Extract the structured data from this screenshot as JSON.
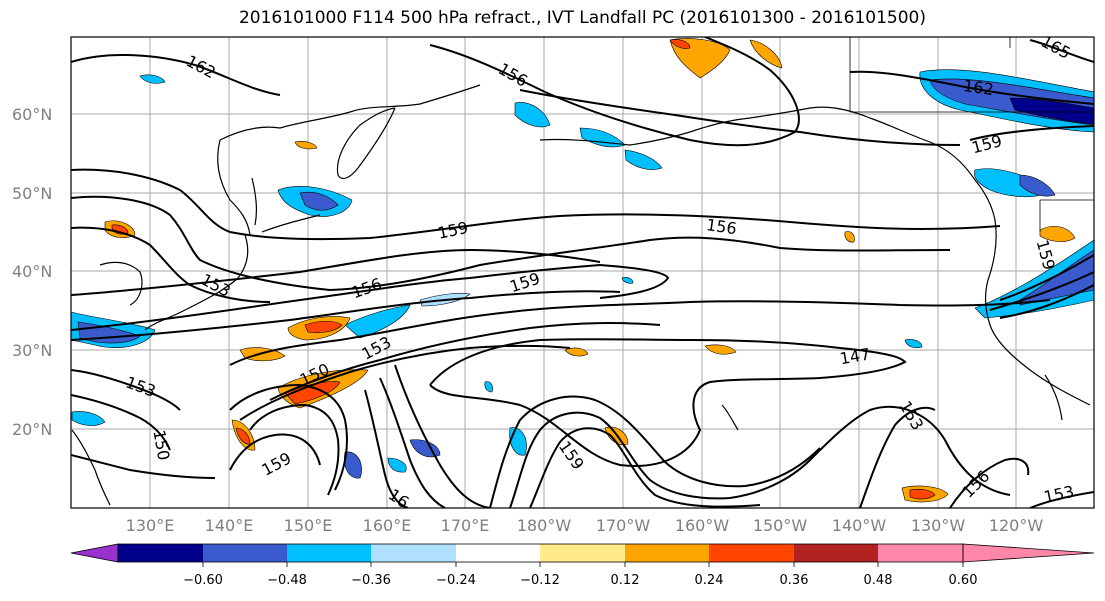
{
  "title": "2016101000 F114 500 hPa refract., IVT Landfall PC (2016101300 - 2016101500)",
  "lat_ticks": [
    "60°N",
    "50°N",
    "40°N",
    "30°N",
    "20°N"
  ],
  "lon_ticks": [
    "130°E",
    "140°E",
    "150°E",
    "160°E",
    "170°E",
    "180°W",
    "170°W",
    "160°W",
    "150°W",
    "140°W",
    "130°W",
    "120°W"
  ],
  "colorbar": {
    "colors": [
      "#9932cc",
      "#00008b",
      "#3a5bcd",
      "#00bfff",
      "#b0e0ff",
      "#ffffff",
      "#ffeb8c",
      "#ffa500",
      "#ff4500",
      "#b22222",
      "#ff88aa"
    ],
    "tick_labels": [
      "−0.60",
      "−0.48",
      "−0.36",
      "−0.24",
      "−0.12",
      "0.12",
      "0.24",
      "0.36",
      "0.48",
      "0.60"
    ]
  },
  "contour_labels": [
    "162",
    "156",
    "159",
    "156",
    "159",
    "156",
    "153",
    "159",
    "153",
    "147",
    "150",
    "153",
    "150",
    "159",
    "159",
    "153",
    "156",
    "153",
    "162",
    "159",
    "165",
    "159",
    "156",
    "16"
  ]
}
